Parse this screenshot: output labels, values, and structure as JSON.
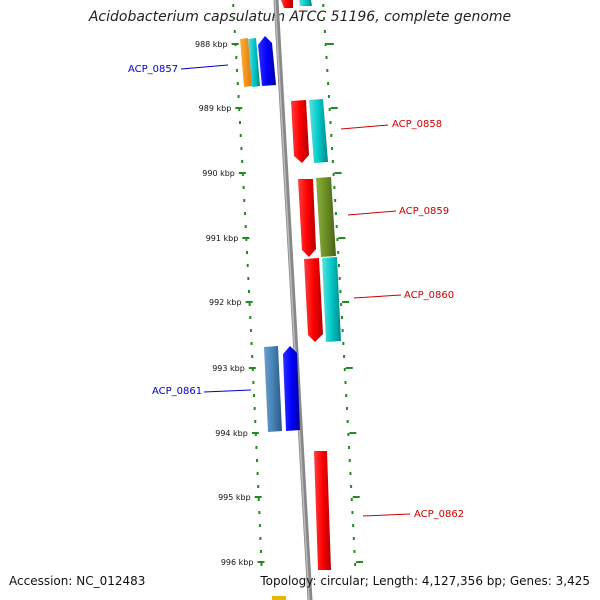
{
  "title": "Acidobacterium capsulatum ATCC 51196, complete genome",
  "footer": {
    "accession": "Accession: NC_012483",
    "topology": "Topology: circular; Length: 4,127,356 bp; Genes: 3,425"
  },
  "ticks": [
    "988 kbp",
    "989 kbp",
    "990 kbp",
    "991 kbp",
    "992 kbp",
    "993 kbp",
    "994 kbp",
    "995 kbp",
    "996 kbp"
  ],
  "gene_labels": [
    {
      "id": "ACP_0857",
      "color": "#0000cc"
    },
    {
      "id": "ACP_0858",
      "color": "#cc0000"
    },
    {
      "id": "ACP_0859",
      "color": "#cc0000"
    },
    {
      "id": "ACP_0860",
      "color": "#cc0000"
    },
    {
      "id": "ACP_0861",
      "color": "#0000cc"
    },
    {
      "id": "ACP_0862",
      "color": "#cc0000"
    }
  ],
  "colors": {
    "forward_cds": "#ff0000",
    "reverse_cds": "#0000ff",
    "rna": "#00cccc",
    "cog_olive": "#6b8e23",
    "cog_steel": "#4682b4",
    "cog_orange": "#ff8c00",
    "backbone": "#888888",
    "ticks": "#228b22"
  }
}
